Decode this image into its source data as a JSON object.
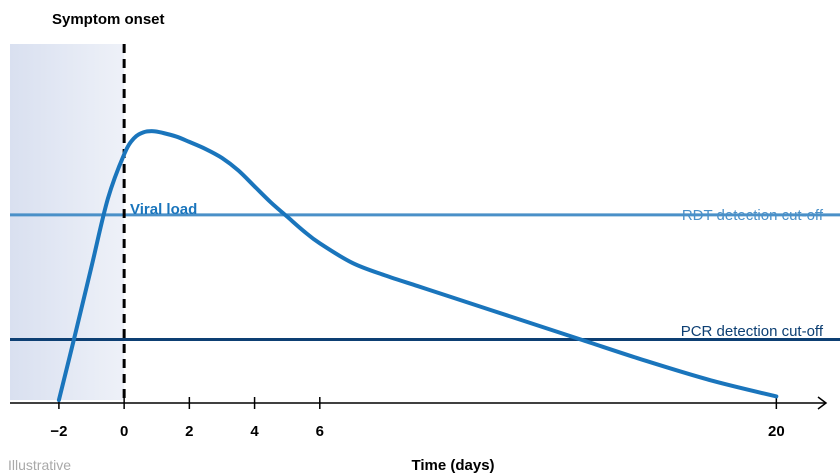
{
  "chart_data": {
    "type": "line",
    "onset_label": "Symptom onset",
    "xlabel": "Time (days)",
    "footnote": "Illustrative",
    "x_ticks": [
      -2,
      0,
      2,
      4,
      6,
      20
    ],
    "x_tick_labels": [
      "−2",
      "0",
      "2",
      "4",
      "6",
      "20"
    ],
    "xlim": [
      -3.5,
      21.4
    ],
    "ylim": [
      0,
      10
    ],
    "grid": false,
    "shaded_region": {
      "from": -3.5,
      "to": 0
    },
    "onset_x": 0,
    "thresholds": [
      {
        "name": "RDT detection cut-off",
        "y": 5.2,
        "color": "#4a90c8"
      },
      {
        "name": "PCR detection cut-off",
        "y": 1.7,
        "color": "#0d3f73"
      }
    ],
    "series": [
      {
        "name": "Viral load",
        "color": "#1a75bc",
        "x": [
          -2,
          -1.5,
          -1,
          -0.5,
          0,
          0.3,
          0.6,
          0.9,
          1.2,
          1.6,
          2,
          2.5,
          3,
          3.5,
          4,
          4.5,
          5,
          5.5,
          6,
          7,
          8,
          9,
          10,
          12,
          14,
          16,
          18,
          20
        ],
        "y": [
          0,
          1.85,
          3.75,
          5.65,
          6.9,
          7.35,
          7.52,
          7.55,
          7.5,
          7.4,
          7.25,
          7.05,
          6.8,
          6.45,
          6.0,
          5.55,
          5.15,
          4.75,
          4.4,
          3.85,
          3.5,
          3.2,
          2.9,
          2.3,
          1.7,
          1.1,
          0.55,
          0.1
        ]
      }
    ],
    "colors": {
      "shade": "#dde3f1",
      "axis": "#000000",
      "onset_line": "#000000",
      "footnote": "#a9a9a9"
    }
  }
}
